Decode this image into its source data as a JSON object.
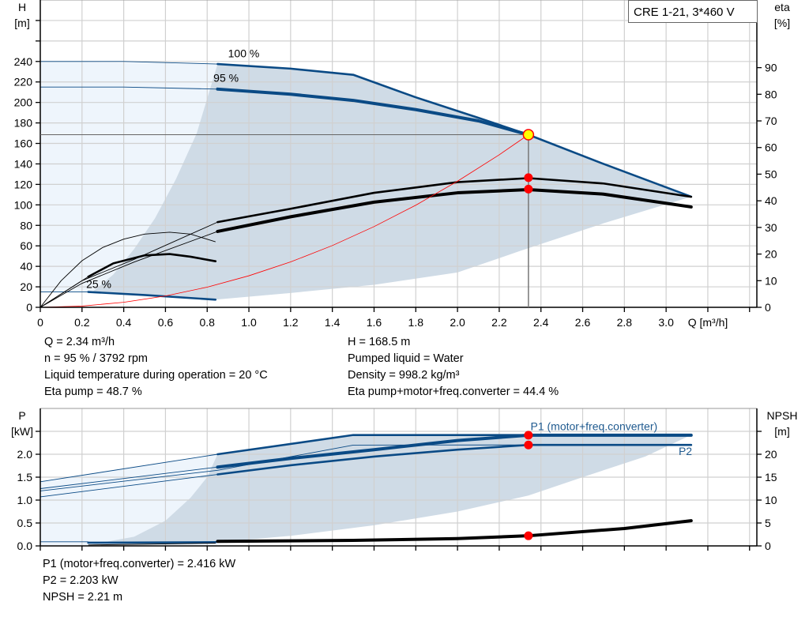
{
  "chart_data": [
    {
      "type": "line",
      "title_box": "CRE 1-21, 3*460 V",
      "xlabel": "Q [m³/h]",
      "ylabel_left": [
        "H",
        "[m]"
      ],
      "ylabel_right": [
        "eta",
        "[%]"
      ],
      "xlim": [
        0,
        3.435
      ],
      "ylim_left": [
        0,
        300
      ],
      "ylim_right": [
        0,
        115.4
      ],
      "x_ticks": [
        0,
        0.2,
        0.4,
        0.6,
        0.8,
        1.0,
        1.2,
        1.4,
        1.6,
        1.8,
        2.0,
        2.2,
        2.4,
        2.6,
        2.8,
        3.0,
        3.2,
        3.4
      ],
      "x_tick_labels": [
        "0",
        "0.2",
        "0.4",
        "0.6",
        "0.8",
        "1.0",
        "1.2",
        "1.4",
        "1.6",
        "1.8",
        "2.0",
        "2.2",
        "2.4",
        "2.6",
        "2.8",
        "3.0",
        "",
        ""
      ],
      "y_left_ticks": [
        0,
        20,
        40,
        60,
        80,
        100,
        120,
        140,
        160,
        180,
        200,
        220,
        240,
        260,
        280
      ],
      "y_left_tick_labels": [
        "0",
        "20",
        "40",
        "60",
        "80",
        "100",
        "120",
        "140",
        "160",
        "180",
        "200",
        "220",
        "240",
        "",
        ""
      ],
      "y_right_ticks": [
        0,
        10,
        20,
        30,
        40,
        50,
        60,
        70,
        80,
        90
      ],
      "grid": true,
      "curve_labels": [
        {
          "text": "100 %",
          "q": 0.9,
          "h": 244
        },
        {
          "text": "95 %",
          "q": 0.83,
          "h": 220
        },
        {
          "text": "25 %",
          "q": 0.22,
          "h": 19
        }
      ],
      "regions": [
        {
          "name": "light-range",
          "color": "#eef5fc",
          "axis": "H",
          "points": [
            [
              0,
              240
            ],
            [
              0.85,
              237.5
            ],
            [
              0.84,
              7.5
            ],
            [
              0.23,
              15
            ],
            [
              0,
              15
            ]
          ]
        },
        {
          "name": "operating-range",
          "color": "#cfdbe6",
          "axis": "H",
          "points": [
            [
              0.25,
              15
            ],
            [
              0.35,
              32
            ],
            [
              0.45,
              57
            ],
            [
              0.55,
              87
            ],
            [
              0.65,
              125
            ],
            [
              0.75,
              170
            ],
            [
              0.85,
              237.5
            ],
            [
              1.2,
              233
            ],
            [
              1.5,
              227
            ],
            [
              1.8,
              205
            ],
            [
              2.1,
              185
            ],
            [
              2.34,
              168.5
            ],
            [
              2.7,
              140
            ],
            [
              3.12,
              108
            ],
            [
              2.7,
              82
            ],
            [
              2.3,
              55
            ],
            [
              2.0,
              34
            ],
            [
              1.6,
              22
            ],
            [
              1.2,
              14
            ],
            [
              0.84,
              7.5
            ],
            [
              0.5,
              12
            ],
            [
              0.25,
              15
            ]
          ]
        }
      ],
      "series": [
        {
          "name": "H 100 %",
          "axis": "H",
          "color": "#0a4a85",
          "thin": [
            [
              0,
              240
            ],
            [
              0.4,
              240
            ],
            [
              0.85,
              237.5
            ]
          ],
          "points": [
            [
              0.85,
              237.5
            ],
            [
              1.2,
              233
            ],
            [
              1.5,
              227
            ],
            [
              1.8,
              205
            ],
            [
              2.1,
              185
            ],
            [
              2.34,
              168.5
            ],
            [
              2.7,
              140
            ],
            [
              3.12,
              108
            ]
          ]
        },
        {
          "name": "H 95 %",
          "axis": "H",
          "color": "#0a4a85",
          "thin": [
            [
              0,
              215
            ],
            [
              0.4,
              215
            ],
            [
              0.85,
              213
            ]
          ],
          "points": [
            [
              0.85,
              213
            ],
            [
              1.2,
              208
            ],
            [
              1.5,
              202
            ],
            [
              1.8,
              193
            ],
            [
              2.1,
              182
            ],
            [
              2.34,
              168.5
            ]
          ],
          "bold": true
        },
        {
          "name": "H 25 %",
          "axis": "H",
          "color": "#0a4a85",
          "thin": [
            [
              0,
              15
            ],
            [
              0.23,
              15
            ]
          ],
          "points": [
            [
              0.23,
              15
            ],
            [
              0.5,
              12
            ],
            [
              0.84,
              7.5
            ]
          ]
        },
        {
          "name": "eta pump",
          "axis": "eta",
          "color": "#000000",
          "thin": [
            [
              0,
              0
            ],
            [
              0.2,
              10
            ],
            [
              0.45,
              18
            ],
            [
              0.85,
              32
            ]
          ],
          "points": [
            [
              0.85,
              32
            ],
            [
              1.2,
              37
            ],
            [
              1.6,
              43
            ],
            [
              2.0,
              47
            ],
            [
              2.34,
              48.5
            ],
            [
              2.7,
              46.5
            ],
            [
              3.12,
              41.5
            ]
          ]
        },
        {
          "name": "eta pump+motor+freq.converter",
          "axis": "eta",
          "color": "#000000",
          "thin": [
            [
              0,
              0
            ],
            [
              0.2,
              9
            ],
            [
              0.45,
              17
            ],
            [
              0.85,
              28.5
            ]
          ],
          "points": [
            [
              0.85,
              28.5
            ],
            [
              1.2,
              34
            ],
            [
              1.6,
              39.5
            ],
            [
              2.0,
              43
            ],
            [
              2.34,
              44.2
            ],
            [
              2.7,
              42.5
            ],
            [
              3.12,
              37.7
            ]
          ],
          "bold": true
        },
        {
          "name": "eta 25 %",
          "axis": "eta",
          "color": "#000000",
          "thin": [
            [
              0,
              0
            ],
            [
              0.12,
              6
            ],
            [
              0.23,
              11.5
            ]
          ],
          "points": [
            [
              0.23,
              11.5
            ],
            [
              0.35,
              16.5
            ],
            [
              0.5,
              19.5
            ],
            [
              0.62,
              20
            ],
            [
              0.72,
              19
            ],
            [
              0.84,
              17.3
            ]
          ]
        },
        {
          "name": "eta max",
          "axis": "eta",
          "color": "#000000",
          "thin": [
            [
              0,
              0
            ],
            [
              0.1,
              10
            ],
            [
              0.2,
              17.5
            ],
            [
              0.3,
              22.5
            ],
            [
              0.4,
              25.6
            ],
            [
              0.5,
              27.5
            ],
            [
              0.62,
              28.2
            ],
            [
              0.72,
              27.5
            ],
            [
              0.84,
              24.6
            ]
          ],
          "points": []
        },
        {
          "name": "system curve",
          "axis": "H",
          "color": "#ff0000",
          "thin": [
            [
              0,
              0
            ],
            [
              0.2,
              1.2
            ],
            [
              0.4,
              4.9
            ],
            [
              0.6,
              11.1
            ],
            [
              0.8,
              19.7
            ],
            [
              1.0,
              30.8
            ],
            [
              1.2,
              44.3
            ],
            [
              1.4,
              60.3
            ],
            [
              1.6,
              78.8
            ],
            [
              1.8,
              99.7
            ],
            [
              2.0,
              123.1
            ],
            [
              2.2,
              148.9
            ],
            [
              2.34,
              168.5
            ]
          ],
          "points": []
        }
      ],
      "operating_point": {
        "q": 2.34,
        "h": 168.5,
        "eta_pump": 48.7,
        "eta_total": 44.4,
        "color": "#ffff00"
      }
    },
    {
      "type": "line",
      "xlabel": "",
      "ylabel_left": [
        "P",
        "[kW]"
      ],
      "ylabel_right": [
        "NPSH",
        "[m]"
      ],
      "xlim": [
        0,
        3.435
      ],
      "ylim_left": [
        0,
        3.0
      ],
      "ylim_right": [
        0,
        30
      ],
      "x_ticks": [
        0,
        0.2,
        0.4,
        0.6,
        0.8,
        1.0,
        1.2,
        1.4,
        1.6,
        1.8,
        2.0,
        2.2,
        2.4,
        2.6,
        2.8,
        3.0,
        3.2,
        3.4
      ],
      "y_left_ticks": [
        0,
        0.5,
        1.0,
        1.5,
        2.0,
        2.5
      ],
      "y_left_tick_labels": [
        "0.0",
        "0.5",
        "1.0",
        "1.5",
        "2.0",
        ""
      ],
      "y_right_ticks": [
        0,
        5,
        10,
        15,
        20,
        25
      ],
      "y_right_tick_labels": [
        "0",
        "5",
        "10",
        "15",
        "20",
        ""
      ],
      "grid": true,
      "curve_labels": [
        {
          "text": "P1 (motor+freq.converter)",
          "q": 2.35,
          "p": 2.53,
          "color": "#1f5a8f"
        },
        {
          "text": "P2",
          "q": 3.06,
          "p": 1.98,
          "color": "#1f5a8f"
        }
      ],
      "regions": [
        {
          "name": "light-range",
          "color": "#eef5fc",
          "points": [
            [
              0,
              1.4
            ],
            [
              0.85,
              2.0
            ],
            [
              0.85,
              0.02
            ],
            [
              0,
              0.02
            ]
          ]
        },
        {
          "name": "operating-range",
          "color": "#cfdbe6",
          "points": [
            [
              0.23,
              0.02
            ],
            [
              0.45,
              0.2
            ],
            [
              0.6,
              0.55
            ],
            [
              0.72,
              1.05
            ],
            [
              0.8,
              1.5
            ],
            [
              0.85,
              2.0
            ],
            [
              1.5,
              2.42
            ],
            [
              3.12,
              2.42
            ],
            [
              2.9,
              1.95
            ],
            [
              2.6,
              1.5
            ],
            [
              2.34,
              1.1
            ],
            [
              2.0,
              0.75
            ],
            [
              1.6,
              0.45
            ],
            [
              1.2,
              0.22
            ],
            [
              0.8,
              0.06
            ],
            [
              0.5,
              0.02
            ]
          ]
        }
      ],
      "series": [
        {
          "name": "P1 100 %",
          "axis": "P",
          "color": "#0a4a85",
          "thin": [
            [
              0,
              1.4
            ],
            [
              0.85,
              2.0
            ]
          ],
          "points": [
            [
              0.85,
              2.0
            ],
            [
              1.5,
              2.42
            ],
            [
              3.12,
              2.42
            ]
          ]
        },
        {
          "name": "P1 (motor+freq.converter)",
          "axis": "P",
          "color": "#0a4a85",
          "thin": [
            [
              0,
              1.25
            ],
            [
              0.85,
              1.72
            ]
          ],
          "points": [
            [
              0.85,
              1.72
            ],
            [
              1.2,
              1.91
            ],
            [
              1.6,
              2.1
            ],
            [
              2.0,
              2.3
            ],
            [
              2.34,
              2.416
            ],
            [
              3.12,
              2.416
            ]
          ],
          "bold": true
        },
        {
          "name": "P2 100 %",
          "axis": "P",
          "color": "#0a4a85",
          "thin": [
            [
              0,
              1.2
            ],
            [
              0.85,
              1.65
            ],
            [
              1.5,
              2.2
            ],
            [
              2.34,
              2.203
            ]
          ],
          "points": []
        },
        {
          "name": "P2",
          "axis": "P",
          "color": "#0a4a85",
          "thin": [
            [
              0,
              1.07
            ],
            [
              0.85,
              1.56
            ]
          ],
          "points": [
            [
              0.85,
              1.56
            ],
            [
              1.2,
              1.76
            ],
            [
              1.6,
              1.95
            ],
            [
              2.0,
              2.1
            ],
            [
              2.34,
              2.203
            ],
            [
              3.12,
              2.203
            ]
          ]
        },
        {
          "name": "P 25 %",
          "axis": "P",
          "color": "#0a4a85",
          "thin": [
            [
              0,
              0.09
            ],
            [
              0.23,
              0.09
            ]
          ],
          "points": [
            [
              0.23,
              0.07
            ],
            [
              0.84,
              0.08
            ]
          ]
        },
        {
          "name": "NPSH",
          "axis": "NPSH",
          "color": "#000000",
          "thin": [
            [
              0.23,
              0.2
            ],
            [
              0.84,
              0.6
            ]
          ],
          "points": [
            [
              0.85,
              1.0
            ],
            [
              1.5,
              1.2
            ],
            [
              2.0,
              1.6
            ],
            [
              2.34,
              2.21
            ],
            [
              2.8,
              3.8
            ],
            [
              3.12,
              5.5
            ]
          ],
          "bold": true
        }
      ],
      "operating_points": {
        "q": 2.34,
        "p1": 2.416,
        "p2": 2.203,
        "npsh": 2.21
      }
    }
  ],
  "info_top_left": [
    "Q = 2.34 m³/h",
    "n = 95 % / 3792 rpm",
    "Liquid temperature during operation = 20 °C",
    "Eta pump = 48.7 %"
  ],
  "info_top_right": [
    "H = 168.5 m",
    "Pumped liquid = Water",
    "Density = 998.2 kg/m³",
    "Eta pump+motor+freq.converter = 44.4 %"
  ],
  "info_bottom": [
    "P1 (motor+freq.converter) = 2.416 kW",
    "P2 = 2.203 kW",
    "NPSH = 2.21 m"
  ],
  "colors": {
    "grid": "#d0d0d0",
    "curve_blue": "#0a4a85",
    "point_red": "#ff0000",
    "region_light": "#eef5fc",
    "region_dark": "#cfdbe6"
  }
}
